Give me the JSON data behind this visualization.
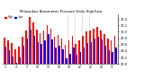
{
  "title": "Milwaukee Barometric Pressure Daily High/Low",
  "bar_width": 0.38,
  "background_color": "#ffffff",
  "highs": [
    29.82,
    29.72,
    29.65,
    29.45,
    29.55,
    29.85,
    30.05,
    30.45,
    30.28,
    30.08,
    29.95,
    30.05,
    30.22,
    30.1,
    29.85,
    29.9,
    29.78,
    29.6,
    29.72,
    29.88,
    29.62,
    29.72,
    29.88,
    30.0,
    30.05,
    30.1,
    30.15,
    30.05,
    29.92,
    29.78,
    29.72,
    29.88
  ],
  "lows": [
    29.55,
    29.42,
    29.22,
    29.05,
    29.2,
    29.58,
    29.78,
    30.08,
    29.88,
    29.68,
    29.62,
    29.72,
    29.92,
    29.75,
    29.52,
    29.58,
    29.45,
    29.18,
    29.32,
    29.52,
    29.28,
    29.38,
    29.52,
    29.65,
    29.68,
    29.78,
    29.85,
    29.75,
    29.58,
    29.42,
    29.38,
    29.52
  ],
  "high_color": "#ff0000",
  "low_color": "#0000ff",
  "ymin": 29.0,
  "ymax": 30.55,
  "yticks": [
    29.0,
    29.2,
    29.4,
    29.6,
    29.8,
    30.0,
    30.2,
    30.4
  ],
  "ytick_labels": [
    "29.0",
    "29.2",
    "29.4",
    "29.6",
    "29.8",
    "30.0",
    "30.2",
    "30.4"
  ],
  "dotted_lines": [
    17.5,
    19.5,
    21.5,
    23.5
  ],
  "n": 32
}
